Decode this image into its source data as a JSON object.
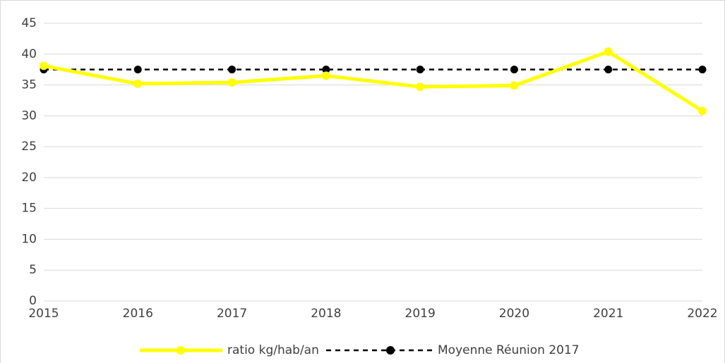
{
  "chart_data": {
    "type": "line",
    "categories": [
      "2015",
      "2016",
      "2017",
      "2018",
      "2019",
      "2020",
      "2021",
      "2022"
    ],
    "series": [
      {
        "name": "ratio kg/hab/an",
        "color": "#ffff00",
        "style": "solid",
        "values": [
          38.1,
          35.2,
          35.4,
          36.5,
          34.7,
          34.9,
          40.4,
          30.8
        ]
      },
      {
        "name": "Moyenne Réunion 2017",
        "color": "#000000",
        "style": "dashed",
        "values": [
          37.5,
          37.5,
          37.5,
          37.5,
          37.5,
          37.5,
          37.5,
          37.5
        ]
      }
    ],
    "ylim": [
      0,
      45
    ],
    "yticks": [
      0,
      5,
      10,
      15,
      20,
      25,
      30,
      35,
      40,
      45
    ],
    "grid": true,
    "legend": "bottom"
  }
}
